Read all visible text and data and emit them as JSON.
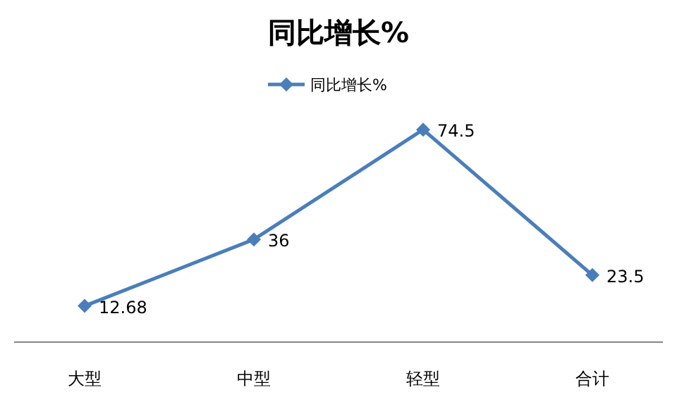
{
  "chart_data": {
    "type": "line",
    "title": "同比增长%",
    "categories": [
      "大型",
      "中型",
      "轻型",
      "合计"
    ],
    "series": [
      {
        "name": "同比增长%",
        "color": "#4a7ebb",
        "values": [
          12.68,
          36,
          74.5,
          23.5
        ]
      }
    ],
    "data_labels": true,
    "legend": "top",
    "marker": "diamond",
    "grid": false
  }
}
